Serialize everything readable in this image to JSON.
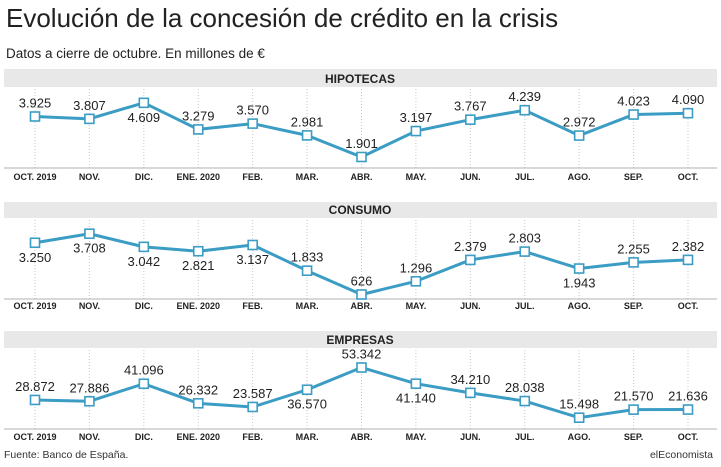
{
  "title": "Evolución de la concesión de crédito en la crisis",
  "subtitle": "Datos a cierre de octubre. En millones de €",
  "footer": {
    "source": "Fuente: Banco de España.",
    "brand": "elEconomista"
  },
  "colors": {
    "line": "#3b9cc4",
    "band": "#e8e8e8",
    "grid": "#c8c8c8",
    "marker_fill": "#ffffff",
    "text": "#222222"
  },
  "chart_data": [
    {
      "type": "line",
      "title": "HIPOTECAS",
      "categories": [
        "OCT. 2019",
        "NOV.",
        "DIC.",
        "ENE. 2020",
        "FEB.",
        "MAR.",
        "ABR.",
        "MAY.",
        "JUN.",
        "JUL.",
        "AGO.",
        "SEP.",
        "OCT."
      ],
      "values": [
        3925,
        3807,
        4609,
        3279,
        3570,
        2981,
        1901,
        3197,
        3767,
        4239,
        2972,
        4023,
        4090
      ],
      "value_labels": [
        "3.925",
        "3.807",
        "4.609",
        "3.279",
        "3.570",
        "2.981",
        "1.901",
        "3.197",
        "3.767",
        "4.239",
        "2.972",
        "4.023",
        "4.090"
      ],
      "label_positions": [
        "above",
        "above",
        "below",
        "above",
        "above",
        "above",
        "above",
        "above",
        "above",
        "above",
        "above",
        "above",
        "above"
      ],
      "ylim": [
        1700,
        4900
      ],
      "grid": true
    },
    {
      "type": "line",
      "title": "CONSUMO",
      "categories": [
        "OCT. 2019",
        "NOV.",
        "DIC.",
        "ENE. 2020",
        "FEB.",
        "MAR.",
        "ABR.",
        "MAY.",
        "JUN.",
        "JUL.",
        "AGO.",
        "SEP.",
        "OCT."
      ],
      "values": [
        3250,
        3708,
        3042,
        2821,
        3137,
        1833,
        626,
        1296,
        2379,
        2803,
        1943,
        2255,
        2382
      ],
      "value_labels": [
        "3.250",
        "3.708",
        "3.042",
        "2.821",
        "3.137",
        "1.833",
        "626",
        "1.296",
        "2.379",
        "2.803",
        "1.943",
        "2.255",
        "2.382"
      ],
      "label_positions": [
        "below",
        "below",
        "below",
        "below",
        "below",
        "above",
        "above",
        "above",
        "above",
        "above",
        "below",
        "above",
        "above"
      ],
      "ylim": [
        550,
        4100
      ],
      "grid": true
    },
    {
      "type": "line",
      "title": "EMPRESAS",
      "categories": [
        "OCT. 2019",
        "NOV.",
        "DIC.",
        "ENE. 2020",
        "FEB.",
        "MAR.",
        "ABR.",
        "MAY.",
        "JUN.",
        "JUL.",
        "AGO.",
        "SEP.",
        "OCT."
      ],
      "values": [
        28872,
        27886,
        41096,
        26332,
        23587,
        36570,
        53342,
        41140,
        34210,
        28038,
        15498,
        21570,
        21636
      ],
      "value_labels": [
        "28.872",
        "27.886",
        "41.096",
        "26.332",
        "23.587",
        "36.570",
        "53.342",
        "41.140",
        "34.210",
        "28.038",
        "15.498",
        "21.570",
        "21.636"
      ],
      "label_positions": [
        "above",
        "above",
        "above",
        "above",
        "above",
        "below",
        "above",
        "below",
        "above",
        "above",
        "above",
        "above",
        "above"
      ],
      "ylim": [
        13000,
        59000
      ],
      "grid": true
    }
  ]
}
